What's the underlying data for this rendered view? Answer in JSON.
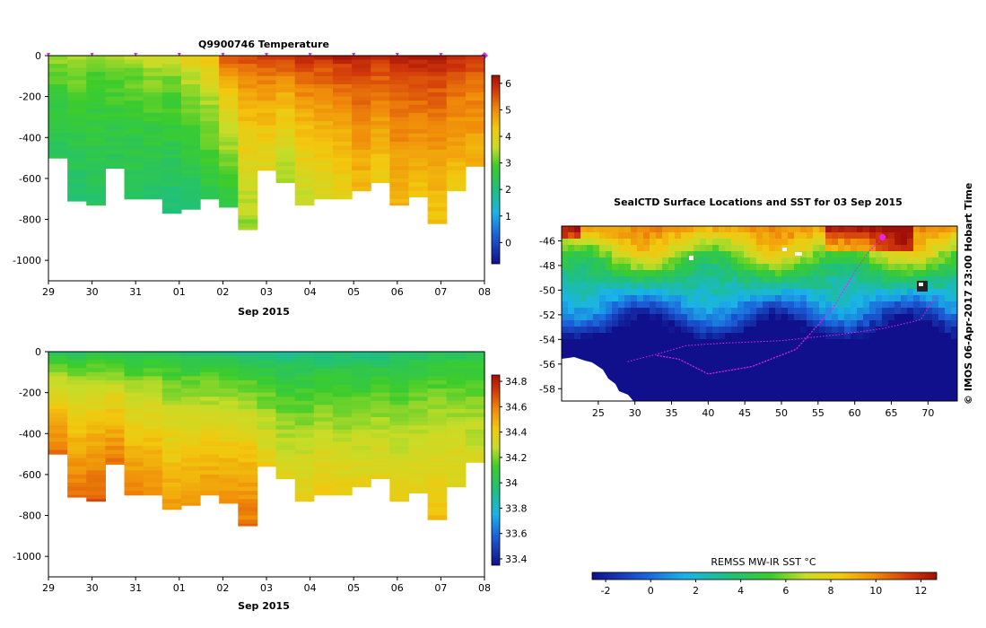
{
  "chart_data": [
    {
      "type": "heatmap",
      "title": "Q9900746  Temperature",
      "xlabel": "Sep 2015",
      "x_tick_labels": [
        "29",
        "30",
        "31",
        "01",
        "02",
        "03",
        "04",
        "05",
        "06",
        "07",
        "08"
      ],
      "y_tick_labels": [
        "0",
        "-200",
        "-400",
        "-600",
        "-800",
        "-1000"
      ],
      "y_ticks": [
        0,
        -200,
        -400,
        -600,
        -800,
        -1000
      ],
      "ylim": [
        -1100,
        0
      ],
      "colorbar_range": [
        -0.8,
        6.3
      ],
      "colorbar_ticks": [
        0,
        1,
        2,
        3,
        4,
        5,
        6
      ],
      "colorbar_tick_labels": [
        "0",
        "1",
        "2",
        "3",
        "4",
        "5",
        "6"
      ],
      "profile_max_depths": [
        500,
        710,
        730,
        550,
        700,
        700,
        770,
        750,
        700,
        740,
        850,
        560,
        620,
        730,
        700,
        700,
        660,
        620,
        730,
        690,
        820,
        660,
        540
      ],
      "surface_values": [
        3.6,
        3.7,
        3.3,
        3.5,
        3.6,
        3.9,
        3.8,
        4.3,
        4.6,
        5.8,
        5.9,
        5.9,
        6.1,
        6.2,
        6.2,
        6.3,
        6.3,
        6.2,
        6.2,
        6.3,
        6.3,
        6.2,
        6.0
      ],
      "deep_values": [
        2.3,
        2.2,
        2.3,
        2.4,
        2.3,
        2.2,
        2.1,
        2.2,
        2.5,
        2.6,
        3.3,
        3.9,
        3.3,
        3.6,
        3.8,
        4.0,
        4.4,
        4.2,
        4.5,
        4.4,
        4.3,
        4.3,
        4.5
      ],
      "markers": [
        "29",
        "30",
        "31",
        "01",
        "02",
        "03",
        "04",
        "05",
        "06",
        "07",
        "08"
      ],
      "marker_color": "#cc33cc"
    },
    {
      "type": "heatmap",
      "title": "",
      "xlabel": "Sep 2015",
      "x_tick_labels": [
        "29",
        "30",
        "31",
        "01",
        "02",
        "03",
        "04",
        "05",
        "06",
        "07",
        "08"
      ],
      "y_tick_labels": [
        "0",
        "-200",
        "-400",
        "-600",
        "-800",
        "-1000"
      ],
      "y_ticks": [
        0,
        -200,
        -400,
        -600,
        -800,
        -1000
      ],
      "ylim": [
        -1100,
        0
      ],
      "colorbar_range": [
        33.35,
        34.85
      ],
      "colorbar_ticks": [
        33.4,
        33.6,
        33.8,
        34.0,
        34.2,
        34.4,
        34.6,
        34.8
      ],
      "colorbar_tick_labels": [
        "33.4",
        "33.6",
        "33.8",
        "34",
        "34.2",
        "34.4",
        "34.6",
        "34.8"
      ],
      "profile_max_depths": [
        500,
        710,
        730,
        550,
        700,
        700,
        770,
        750,
        700,
        740,
        850,
        560,
        620,
        730,
        700,
        700,
        660,
        620,
        730,
        690,
        820,
        660,
        540
      ],
      "surface_values": [
        33.95,
        33.94,
        33.96,
        33.93,
        33.92,
        33.95,
        33.93,
        33.9,
        33.9,
        33.88,
        33.87,
        33.85,
        33.86,
        33.86,
        33.87,
        33.88,
        33.88,
        33.89,
        33.9,
        33.92,
        33.95,
        33.97,
        34.0
      ],
      "deep_values": [
        34.62,
        34.65,
        34.67,
        34.62,
        34.6,
        34.58,
        34.55,
        34.57,
        34.55,
        34.58,
        34.62,
        34.4,
        34.35,
        34.4,
        34.42,
        34.4,
        34.38,
        34.38,
        34.4,
        34.4,
        34.45,
        34.38,
        34.32
      ]
    },
    {
      "type": "heatmap",
      "title": "SealCTD Surface Locations and SST for 03 Sep 2015",
      "xlabel": "",
      "x_tick_labels": [
        "25",
        "30",
        "35",
        "40",
        "45",
        "50",
        "55",
        "60",
        "65",
        "70"
      ],
      "x_ticks": [
        25,
        30,
        35,
        40,
        45,
        50,
        55,
        60,
        65,
        70
      ],
      "y_tick_labels": [
        "-46",
        "-48",
        "-50",
        "-52",
        "-54",
        "-56",
        "-58"
      ],
      "y_ticks": [
        -46,
        -48,
        -50,
        -52,
        -54,
        -56,
        -58
      ],
      "xlim": [
        20,
        74
      ],
      "ylim": [
        -59,
        -44.8
      ],
      "colorbar_label": "REMSS MW-IR SST °C",
      "colorbar_range": [
        -2.6,
        12.7
      ],
      "colorbar_ticks": [
        -2,
        0,
        2,
        4,
        6,
        8,
        10,
        12
      ],
      "colorbar_tick_labels": [
        "-2",
        "0",
        "2",
        "4",
        "6",
        "8",
        "10",
        "12"
      ],
      "track_lon": [
        33,
        36,
        40,
        46,
        52,
        57,
        60,
        62,
        64
      ],
      "track_lat": [
        -55.3,
        -55.6,
        -56.8,
        -56.2,
        -54.8,
        -51.5,
        -48.5,
        -46.8,
        -45.7
      ],
      "track_color": "#ee22ee",
      "current_position": {
        "lon": 63.8,
        "lat": -45.7
      },
      "watermark": "© IMOS 06-Apr-2017 23:00 Hobart Time"
    }
  ]
}
